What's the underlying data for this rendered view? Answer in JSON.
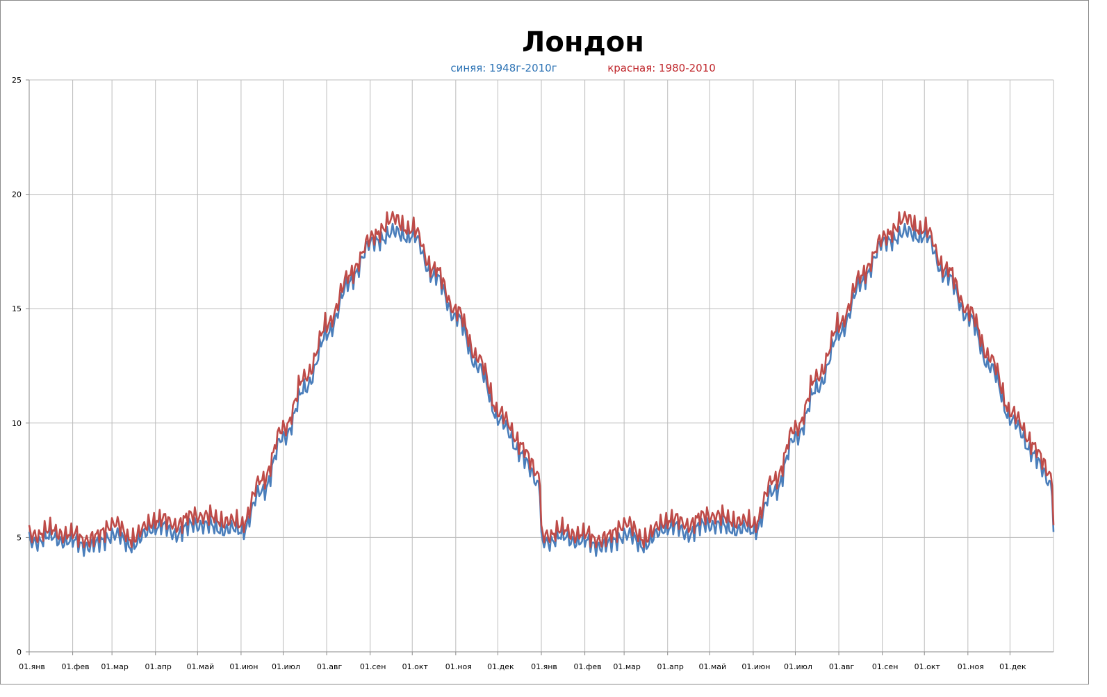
{
  "chart_data": {
    "type": "line",
    "title": "Лондон",
    "subtitles": [
      {
        "text": "синяя: 1948г-2010г",
        "color": "#2E74B5"
      },
      {
        "text": "красная: 1980-2010",
        "color": "#C0282D"
      }
    ],
    "xlabel": "",
    "ylabel": "",
    "ylim": [
      0,
      25
    ],
    "yticks": [
      0,
      5,
      10,
      15,
      20,
      25
    ],
    "xticks": [
      "01.янв",
      "01.фев",
      "01.мар",
      "01.апр",
      "01.май",
      "01.июн",
      "01.июл",
      "01.авг",
      "01.сен",
      "01.окт",
      "01.ноя",
      "01.дек",
      "01.янв",
      "01.фев",
      "01.мар",
      "01.апр",
      "01.май",
      "01.июн",
      "01.июл",
      "01.авг",
      "01.сен",
      "01.окт",
      "01.ноя",
      "01.дек"
    ],
    "grid": true,
    "legend": "none",
    "x_anchor_days": [
      0,
      15,
      31,
      45,
      59,
      74,
      90,
      105,
      120,
      135,
      151,
      166,
      181,
      196,
      212,
      227,
      243,
      258,
      273,
      288,
      304,
      319,
      334,
      349,
      364
    ],
    "series": [
      {
        "name": "синяя: 1948г-2010г",
        "color": "#4A7EBB",
        "values": [
          4.8,
          5.0,
          4.8,
          4.6,
          5.1,
          4.7,
          5.5,
          5.2,
          5.6,
          5.4,
          5.3,
          7.0,
          9.3,
          11.4,
          13.8,
          16.0,
          17.8,
          18.3,
          18.2,
          16.5,
          14.7,
          12.6,
          10.3,
          8.8,
          7.2,
          6.4,
          5.4,
          5.0,
          4.8
        ]
      },
      {
        "name": "красная: 1980-2010",
        "color": "#BE4B48",
        "values": [
          5.1,
          5.3,
          5.1,
          4.9,
          5.6,
          5.0,
          5.8,
          5.6,
          6.0,
          5.8,
          5.6,
          7.5,
          9.7,
          11.9,
          14.2,
          16.3,
          18.0,
          18.9,
          18.5,
          16.8,
          15.0,
          13.0,
          10.6,
          9.2,
          7.6,
          6.8,
          5.7,
          5.2,
          5.1
        ]
      }
    ]
  }
}
